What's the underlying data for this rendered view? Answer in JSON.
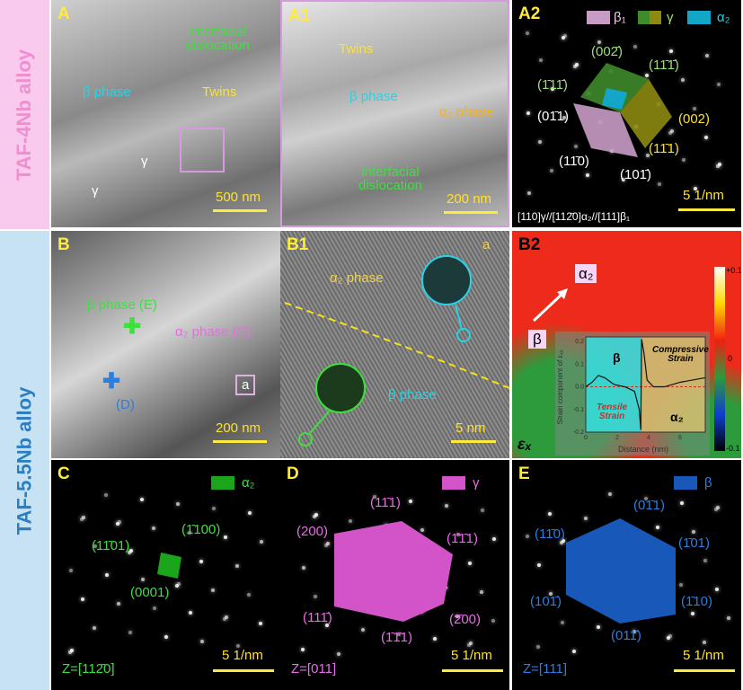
{
  "rows": {
    "top": "TAF-4Nb alloy",
    "bottom": "TAF-5.5Nb alloy",
    "top_color": "#f9c9ee",
    "bottom_color": "#c6e2f3",
    "top_text": "#ee8fd0",
    "bottom_text": "#2b7ec2"
  },
  "A": {
    "label": "A",
    "interfacial": "interfacial\ndislocation",
    "beta": "β phase",
    "twins": "Twins",
    "gamma1": "γ",
    "gamma2": "γ",
    "scale": "500 nm"
  },
  "A1": {
    "label": "A1",
    "twins": "Twins",
    "beta": "β phase",
    "alpha2": "α₂ phase",
    "interfacial": "interfacial\ndislocation",
    "scale": "200 nm"
  },
  "A2": {
    "label": "A2",
    "legend": {
      "beta1": "β₁",
      "gamma": "γ",
      "alpha2": "α₂"
    },
    "indices": {
      "i002b": "(002̄)",
      "i11b1b": "(11̄1̄)",
      "ib11b": "(1̄11̄)",
      "i01b1": "(01̄1)",
      "i002": "(002)",
      "i11b1": "(11̄1)",
      "i11b0": "(11̄0)",
      "i101b": "(101̄)"
    },
    "zone": "[110]γ//[112̄0]α₂//[111]β₁",
    "scale": "5 1/nm"
  },
  "B": {
    "label": "B",
    "beta": "β phase (E)",
    "alpha2": "α₂ phase (C)",
    "d": "(D)",
    "box": "a",
    "scale": "200 nm"
  },
  "B1": {
    "label": "B1",
    "alpha2": "α₂ phase",
    "a": "a",
    "beta": "β phase",
    "scale": "5 nm"
  },
  "B2": {
    "label": "B2",
    "alpha2": "α₂",
    "beta": "β",
    "eps": "εₓ",
    "colorbar": {
      "max": "+0.1",
      "mid": "0",
      "min": "-0.1"
    },
    "inset": {
      "ylabel": "Strain component of εₓₓ",
      "xlabel": "Distance (nm)",
      "beta": "β",
      "alpha2": "α₂",
      "compressive": "Compressive\nStrain",
      "tensile": "Tensile\nStrain",
      "xticks": [
        "0",
        "2",
        "4",
        "6"
      ],
      "yticks": [
        "0.2",
        "0.1",
        "0.0",
        "-0.1",
        "-0.2"
      ],
      "xlim": [
        0,
        7.6
      ],
      "ylim": [
        -0.2,
        0.22
      ],
      "curve": [
        [
          0,
          0
        ],
        [
          0.4,
          0.02
        ],
        [
          0.8,
          0.05
        ],
        [
          1.2,
          0.04
        ],
        [
          1.8,
          0.01
        ],
        [
          2.5,
          0.0
        ],
        [
          3.1,
          -0.02
        ],
        [
          3.4,
          -0.1
        ],
        [
          3.5,
          -0.19
        ],
        [
          3.55,
          0.21
        ],
        [
          3.7,
          0.15
        ],
        [
          3.9,
          0.03
        ],
        [
          4.3,
          0.0
        ],
        [
          5,
          0.0
        ],
        [
          6,
          0.02
        ],
        [
          7.6,
          0.04
        ]
      ]
    }
  },
  "C": {
    "label": "C",
    "legend": "α₂",
    "i1": "(11̄01)",
    "i2": "(1̄100)",
    "i3": "(0001)",
    "zone": "Z=[112̄0]",
    "scale": "5 1/nm"
  },
  "D": {
    "label": "D",
    "legend": "γ",
    "i200": "(200)",
    "i1b1": "(11̄1)",
    "ib1b1": "(1̄1̄1)",
    "i111b": "(111̄)",
    "ib200": "(2̄00)",
    "i1b1b1": "(1̄1̄1)",
    "zone": "Z=[011]",
    "scale": "5 1/nm"
  },
  "E": {
    "label": "E",
    "legend": "β",
    "i1b10": "(11̄0)",
    "i01b1": "(01̄1)",
    "ib101": "(1̄01)",
    "i101b": "(101̄)",
    "ib110": "(1̄10)",
    "i011b": "(011̄)",
    "zone": "Z=[111]",
    "scale": "5 1/nm"
  }
}
